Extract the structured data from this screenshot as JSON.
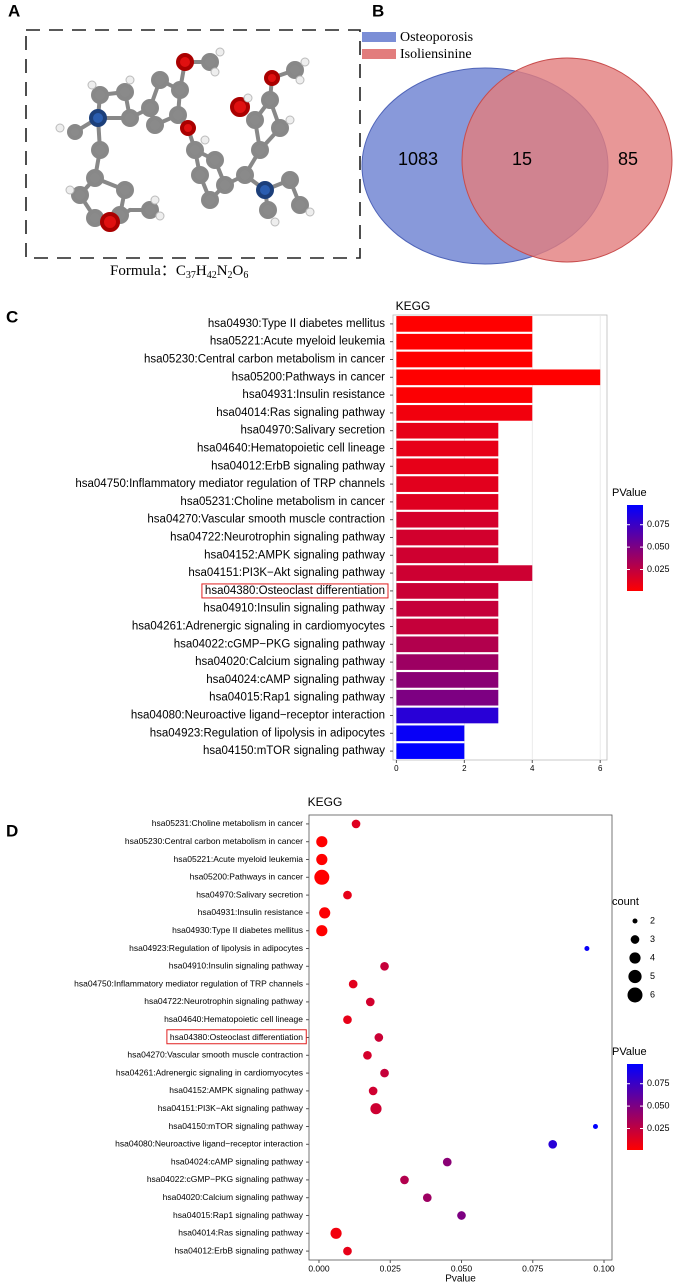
{
  "panel_labels": [
    "A",
    "B",
    "C",
    "D"
  ],
  "molecule": {
    "formula_label": "Formula：",
    "formula": [
      {
        "el": "C",
        "n": "37"
      },
      {
        "el": "H",
        "n": "42"
      },
      {
        "el": "N",
        "n": "2"
      },
      {
        "el": "O",
        "n": "6"
      }
    ]
  },
  "chart_data": [
    {
      "type": "venn",
      "series": [
        {
          "name": "Osteoporosis",
          "color": "#7b8ed6"
        },
        {
          "name": "Isoliensinine",
          "color": "#e27d7d"
        }
      ],
      "values": [
        1083,
        15,
        85
      ]
    },
    {
      "type": "hbar",
      "title": "KEGG",
      "categories": [
        "hsa04930:Type II diabetes mellitus",
        "hsa05221:Acute myeloid leukemia",
        "hsa05230:Central carbon metabolism in cancer",
        "hsa05200:Pathways in cancer",
        "hsa04931:Insulin resistance",
        "hsa04014:Ras signaling pathway",
        "hsa04970:Salivary secretion",
        "hsa04640:Hematopoietic cell lineage",
        "hsa04012:ErbB signaling pathway",
        "hsa04750:Inflammatory mediator regulation of TRP channels",
        "hsa05231:Choline metabolism in cancer",
        "hsa04270:Vascular smooth muscle contraction",
        "hsa04722:Neurotrophin signaling pathway",
        "hsa04152:AMPK signaling pathway",
        "hsa04151:PI3K−Akt signaling pathway",
        "hsa04380:Osteoclast differentiation",
        "hsa04910:Insulin signaling pathway",
        "hsa04261:Adrenergic signaling in cardiomyocytes",
        "hsa04022:cGMP−PKG signaling pathway",
        "hsa04020:Calcium signaling pathway",
        "hsa04024:cAMP signaling pathway",
        "hsa04015:Rap1 signaling pathway",
        "hsa04080:Neuroactive ligand−receptor interaction",
        "hsa04923:Regulation of lipolysis in adipocytes",
        "hsa04150:mTOR signaling pathway"
      ],
      "values": [
        4,
        4,
        4,
        6,
        4,
        4,
        3,
        3,
        3,
        3,
        3,
        3,
        3,
        3,
        4,
        3,
        3,
        3,
        3,
        3,
        3,
        3,
        3,
        2,
        2
      ],
      "pvalues": [
        0.001,
        0.001,
        0.001,
        0.001,
        0.002,
        0.006,
        0.01,
        0.01,
        0.01,
        0.012,
        0.013,
        0.017,
        0.018,
        0.019,
        0.02,
        0.021,
        0.023,
        0.023,
        0.03,
        0.038,
        0.045,
        0.05,
        0.082,
        0.094,
        0.097
      ],
      "xlim": [
        -0.1,
        6.2
      ],
      "xticks": [
        0,
        2,
        4,
        6
      ],
      "grid": true,
      "highlight": 15,
      "colorbar": {
        "title": "PValue",
        "colors": [
          "#ff0000",
          "#0000ff"
        ],
        "lim": [
          0.001,
          0.097
        ],
        "ticks": [
          0.025,
          {
            "value": 0.05,
            "label": "0.050"
          },
          0.075
        ]
      }
    },
    {
      "type": "dot",
      "title": "KEGG",
      "xlabel": "Pvalue",
      "categories": [
        "hsa05231:Choline metabolism in cancer",
        "hsa05230:Central carbon metabolism in cancer",
        "hsa05221:Acute myeloid leukemia",
        "hsa05200:Pathways in cancer",
        "hsa04970:Salivary secretion",
        "hsa04931:Insulin resistance",
        "hsa04930:Type II diabetes mellitus",
        "hsa04923:Regulation of lipolysis in adipocytes",
        "hsa04910:Insulin signaling pathway",
        "hsa04750:Inflammatory mediator regulation of TRP channels",
        "hsa04722:Neurotrophin signaling pathway",
        "hsa04640:Hematopoietic cell lineage",
        "hsa04380:Osteoclast differentiation",
        "hsa04270:Vascular smooth muscle contraction",
        "hsa04261:Adrenergic signaling in cardiomyocytes",
        "hsa04152:AMPK signaling pathway",
        "hsa04151:PI3K−Akt signaling pathway",
        "hsa04150:mTOR signaling pathway",
        "hsa04080:Neuroactive ligand−receptor interaction",
        "hsa04024:cAMP signaling pathway",
        "hsa04022:cGMP−PKG signaling pathway",
        "hsa04020:Calcium signaling pathway",
        "hsa04015:Rap1 signaling pathway",
        "hsa04014:Ras signaling pathway",
        "hsa04012:ErbB signaling pathway"
      ],
      "values": [
        0.013,
        0.001,
        0.001,
        0.001,
        0.01,
        0.002,
        0.001,
        0.094,
        0.023,
        0.012,
        0.018,
        0.01,
        0.021,
        0.017,
        0.023,
        0.019,
        0.02,
        0.097,
        0.082,
        0.045,
        0.03,
        0.038,
        0.05,
        0.006,
        0.01
      ],
      "sizes": [
        3,
        4,
        4,
        6,
        3,
        4,
        4,
        2,
        3,
        3,
        3,
        3,
        3,
        3,
        3,
        3,
        4,
        2,
        3,
        3,
        3,
        3,
        3,
        4,
        3
      ],
      "xlim": [
        -0.0035,
        0.1028
      ],
      "xticks": [
        {
          "value": 0,
          "label": "0.000"
        },
        0.025,
        {
          "value": 0.05,
          "label": "0.050"
        },
        0.075,
        {
          "value": 0.1,
          "label": "0.100"
        }
      ],
      "highlight": 12,
      "size_legend": {
        "title": "count",
        "values": [
          2,
          3,
          4,
          5,
          6
        ]
      },
      "colorbar": {
        "title": "PValue",
        "colors": [
          "#ff0000",
          "#0000ff"
        ],
        "lim": [
          0.001,
          0.097
        ],
        "ticks": [
          0.025,
          {
            "value": 0.05,
            "label": "0.050"
          },
          0.075
        ]
      }
    }
  ]
}
